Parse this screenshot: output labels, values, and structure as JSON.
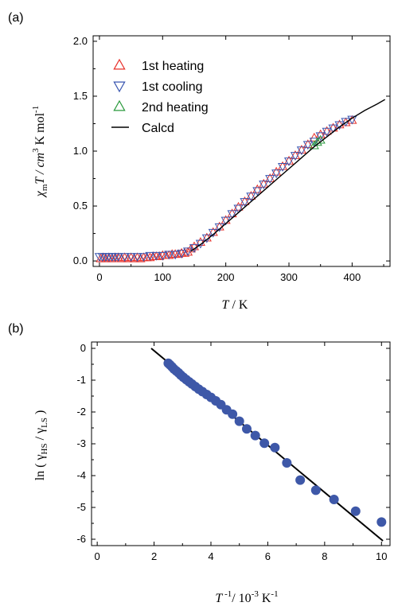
{
  "chart_data": [
    {
      "panel_label": "(a)",
      "type": "scatter",
      "xlabel": {
        "main": "T",
        "unit": " / K"
      },
      "ylabel": {
        "var": "χ",
        "sub": "m",
        "rest": "T / cm",
        "sup3": "3",
        "rest2": " K mol",
        "sup_neg1": "-1"
      },
      "xlim": [
        -10,
        460
      ],
      "ylim": [
        -0.05,
        2.05
      ],
      "xticks": [
        "0",
        "100",
        "200",
        "300",
        "400"
      ],
      "xtick_values": [
        0,
        100,
        200,
        300,
        400
      ],
      "yticks": [
        "0.0",
        "0.5",
        "1.0",
        "1.5",
        "2.0"
      ],
      "ytick_values": [
        0,
        0.5,
        1.0,
        1.5,
        2.0
      ],
      "legend": {
        "placement": "top-left",
        "entries": [
          {
            "label": "1st heating",
            "marker": "triangle-up",
            "color": "#e8302a"
          },
          {
            "label": "1st cooling",
            "marker": "triangle-down",
            "color": "#3a56b0"
          },
          {
            "label": "2nd heating",
            "marker": "triangle-up",
            "color": "#2a9a3c"
          },
          {
            "label": "Calcd",
            "marker": "line",
            "color": "#000000"
          }
        ]
      },
      "series": [
        {
          "name": "1st heating",
          "marker": "triangle-up",
          "color": "#e8302a",
          "x": [
            2,
            6,
            10,
            15,
            20,
            25,
            30,
            35,
            40,
            45,
            50,
            55,
            60,
            65,
            70,
            75,
            80,
            85,
            90,
            95,
            100,
            105,
            110,
            115,
            120,
            125,
            130,
            135,
            140,
            145,
            150,
            160,
            170,
            180,
            190,
            200,
            210,
            220,
            230,
            240,
            250,
            260,
            270,
            280,
            290,
            300,
            310,
            320,
            330,
            340,
            350,
            360,
            370,
            380,
            390,
            400
          ],
          "y": [
            0.02,
            0.03,
            0.02,
            0.03,
            0.02,
            0.03,
            0.03,
            0.02,
            0.03,
            0.02,
            0.03,
            0.02,
            0.03,
            0.02,
            0.03,
            0.03,
            0.03,
            0.04,
            0.04,
            0.04,
            0.05,
            0.05,
            0.05,
            0.06,
            0.06,
            0.06,
            0.07,
            0.07,
            0.08,
            0.11,
            0.13,
            0.17,
            0.21,
            0.26,
            0.31,
            0.37,
            0.43,
            0.49,
            0.54,
            0.59,
            0.65,
            0.7,
            0.75,
            0.81,
            0.86,
            0.91,
            0.96,
            1.01,
            1.06,
            1.12,
            1.15,
            1.18,
            1.21,
            1.24,
            1.26,
            1.28
          ]
        },
        {
          "name": "1st cooling",
          "marker": "triangle-down",
          "color": "#3a56b0",
          "x": [
            0,
            5,
            10,
            15,
            20,
            25,
            30,
            40,
            50,
            60,
            70,
            80,
            90,
            100,
            110,
            120,
            130,
            140,
            150,
            160,
            170,
            180,
            190,
            200,
            210,
            220,
            230,
            240,
            250,
            260,
            270,
            280,
            290,
            300,
            310,
            320,
            330,
            340,
            350,
            360,
            370,
            380,
            390,
            400
          ],
          "y": [
            0.04,
            0.04,
            0.04,
            0.04,
            0.04,
            0.04,
            0.04,
            0.04,
            0.04,
            0.04,
            0.04,
            0.05,
            0.05,
            0.05,
            0.06,
            0.06,
            0.07,
            0.09,
            0.12,
            0.16,
            0.21,
            0.26,
            0.31,
            0.37,
            0.43,
            0.48,
            0.54,
            0.59,
            0.64,
            0.7,
            0.75,
            0.8,
            0.86,
            0.91,
            0.96,
            1.01,
            1.06,
            1.09,
            1.14,
            1.18,
            1.21,
            1.24,
            1.27,
            1.29
          ]
        },
        {
          "name": "2nd heating",
          "marker": "triangle-up",
          "color": "#2a9a3c",
          "x": [
            340,
            345,
            350
          ],
          "y": [
            1.05,
            1.08,
            1.1
          ]
        },
        {
          "name": "Calcd",
          "marker": "line",
          "color": "#000000",
          "x": [
            145,
            160,
            180,
            200,
            220,
            240,
            260,
            280,
            300,
            320,
            340,
            360,
            380,
            400,
            420,
            440,
            452
          ],
          "y": [
            0.09,
            0.15,
            0.24,
            0.34,
            0.44,
            0.54,
            0.64,
            0.74,
            0.84,
            0.94,
            1.04,
            1.13,
            1.22,
            1.3,
            1.37,
            1.43,
            1.47
          ]
        }
      ]
    },
    {
      "panel_label": "(b)",
      "type": "scatter",
      "xlabel": {
        "main": "T",
        "sup": " -1",
        "unit": "/ 10",
        "sup2": "-3",
        "unit2": " K",
        "sup3": "-1"
      },
      "ylabel": {
        "pre": "ln ( γ",
        "sub1": "HS",
        "mid": " / γ",
        "sub2": "LS",
        "post": " )"
      },
      "xlim": [
        -0.2,
        10.3
      ],
      "ylim": [
        -6.2,
        0.2
      ],
      "xticks": [
        "0",
        "2",
        "4",
        "6",
        "8",
        "10"
      ],
      "xtick_values": [
        0,
        2,
        4,
        6,
        8,
        10
      ],
      "yticks": [
        "0",
        "-1",
        "-2",
        "-3",
        "-4",
        "-5",
        "-6"
      ],
      "ytick_values": [
        0,
        -1,
        -2,
        -3,
        -4,
        -5,
        -6
      ],
      "series": [
        {
          "name": "",
          "marker": "circle",
          "color": "#3e58a8",
          "x": [
            2.5,
            2.56,
            2.63,
            2.7,
            2.78,
            2.86,
            2.94,
            3.03,
            3.13,
            3.23,
            3.33,
            3.45,
            3.57,
            3.7,
            3.85,
            4.0,
            4.17,
            4.35,
            4.55,
            4.76,
            5.0,
            5.26,
            5.56,
            5.88,
            6.25,
            6.67,
            7.14,
            7.69,
            8.33,
            9.09,
            10.0
          ],
          "y": [
            -0.47,
            -0.52,
            -0.58,
            -0.65,
            -0.71,
            -0.77,
            -0.84,
            -0.91,
            -0.98,
            -1.05,
            -1.12,
            -1.2,
            -1.28,
            -1.36,
            -1.45,
            -1.54,
            -1.65,
            -1.77,
            -1.93,
            -2.07,
            -2.29,
            -2.53,
            -2.74,
            -2.98,
            -3.12,
            -3.6,
            -4.14,
            -4.46,
            -4.75,
            -5.12,
            -5.46
          ]
        }
      ],
      "fit_line": {
        "x": [
          1.9,
          10.05
        ],
        "y": [
          0.0,
          -6.05
        ],
        "color": "#000000"
      }
    }
  ]
}
